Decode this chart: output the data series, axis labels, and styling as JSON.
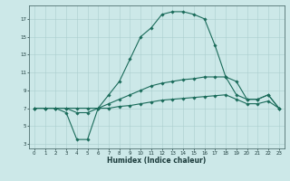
{
  "title": "",
  "xlabel": "Humidex (Indice chaleur)",
  "xlim": [
    -0.5,
    23.5
  ],
  "ylim": [
    2.5,
    18.5
  ],
  "yticks": [
    3,
    5,
    7,
    9,
    11,
    13,
    15,
    17
  ],
  "xticks": [
    0,
    1,
    2,
    3,
    4,
    5,
    6,
    7,
    8,
    9,
    10,
    11,
    12,
    13,
    14,
    15,
    16,
    17,
    18,
    19,
    20,
    21,
    22,
    23
  ],
  "background_color": "#cce8e8",
  "grid_color": "#aacece",
  "line_color": "#1a6b5a",
  "line1_x": [
    0,
    1,
    2,
    3,
    4,
    5,
    6,
    7,
    8,
    9,
    10,
    11,
    12,
    13,
    14,
    15,
    16,
    17,
    18,
    19,
    20,
    21,
    22,
    23
  ],
  "line1_y": [
    7,
    7,
    7,
    6.5,
    3.5,
    3.5,
    7,
    8.5,
    10,
    12.5,
    15,
    16,
    17.5,
    17.8,
    17.8,
    17.5,
    17,
    14,
    10.5,
    10,
    8,
    8,
    8.5,
    7
  ],
  "line2_x": [
    0,
    1,
    2,
    3,
    4,
    5,
    6,
    7,
    8,
    9,
    10,
    11,
    12,
    13,
    14,
    15,
    16,
    17,
    18,
    19,
    20,
    21,
    22,
    23
  ],
  "line2_y": [
    7,
    7,
    7,
    7,
    6.5,
    6.5,
    7,
    7.5,
    8,
    8.5,
    9,
    9.5,
    9.8,
    10,
    10.2,
    10.3,
    10.5,
    10.5,
    10.5,
    8.5,
    8,
    8,
    8.5,
    7
  ],
  "line3_x": [
    0,
    1,
    2,
    3,
    4,
    5,
    6,
    7,
    8,
    9,
    10,
    11,
    12,
    13,
    14,
    15,
    16,
    17,
    18,
    19,
    20,
    21,
    22,
    23
  ],
  "line3_y": [
    7,
    7,
    7,
    7,
    7,
    7,
    7,
    7,
    7.2,
    7.3,
    7.5,
    7.7,
    7.9,
    8.0,
    8.1,
    8.2,
    8.3,
    8.4,
    8.5,
    8.0,
    7.5,
    7.5,
    7.8,
    7
  ],
  "marker": "D",
  "markersize": 1.8,
  "linewidth": 0.8,
  "tick_fontsize": 4.0,
  "xlabel_fontsize": 5.5
}
